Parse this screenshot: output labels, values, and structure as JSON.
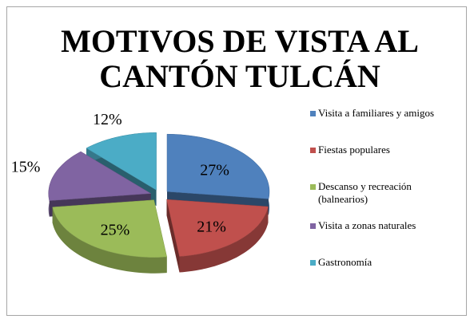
{
  "chart_data": {
    "type": "pie3d",
    "title": "MOTIVOS DE VISTA AL CANTÓN TULCÁN",
    "categories": [
      "Visita a familiares y amigos",
      "Fiestas populares",
      "Descanso y recreación (balnearios)",
      "Visita a zonas naturales",
      "Gastronomía"
    ],
    "values": [
      27,
      21,
      25,
      15,
      12
    ],
    "value_labels": [
      "27%",
      "21%",
      "25%",
      "15%",
      "12%"
    ],
    "colors": [
      "#4f81bd",
      "#c0504d",
      "#9bbb59",
      "#8064a2",
      "#4bacc6"
    ],
    "legend": "right"
  }
}
